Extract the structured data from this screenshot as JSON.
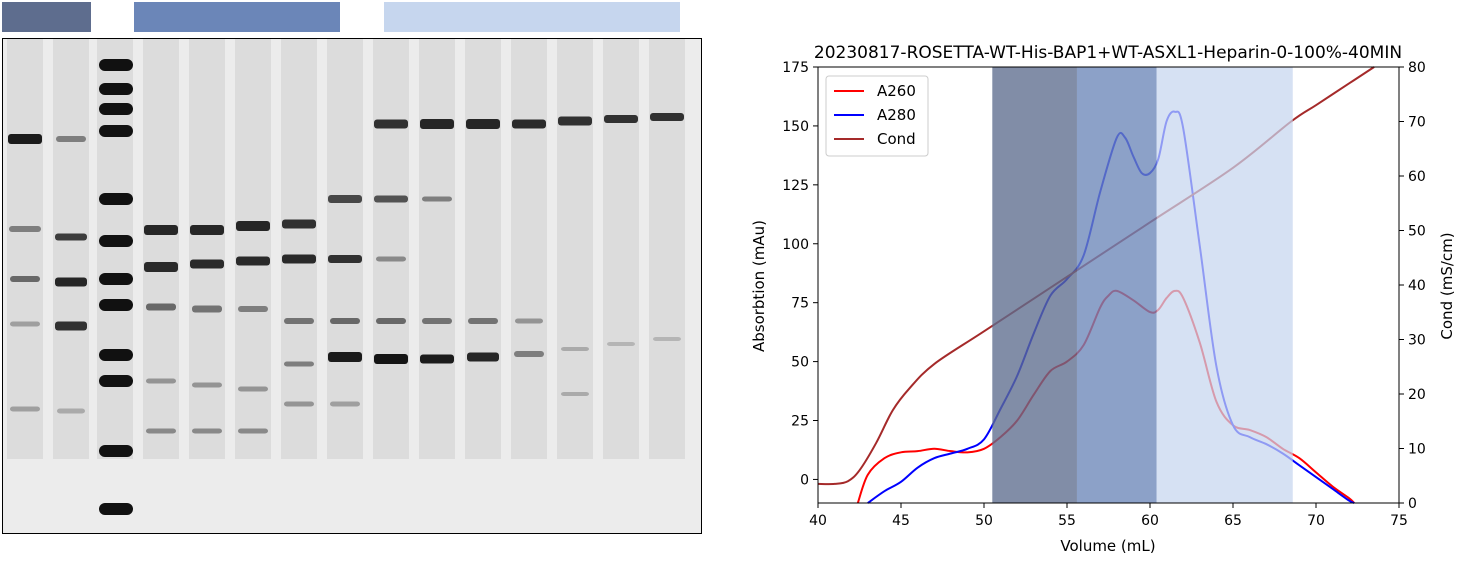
{
  "fraction_bars": [
    {
      "color": "#5e6d8e"
    },
    {
      "color": "#6b86b8"
    },
    {
      "color": "#c6d6ee"
    }
  ],
  "gel": {
    "background": "#ececec",
    "band_color": "#111111",
    "lanes": 15
  },
  "chart_data": {
    "type": "line",
    "title": "20230817-ROSETTA-WT-His-BAP1+WT-ASXL1-Heparin-0-100%-40MIN",
    "xlabel": "Volume (mL)",
    "ylabel": "Absorbtion (mAu)",
    "y2label": "Cond (mS/cm)",
    "xlim": [
      40,
      75
    ],
    "ylim": [
      -10,
      175
    ],
    "y2lim": [
      0,
      80
    ],
    "xticks": [
      40,
      45,
      50,
      55,
      60,
      65,
      70,
      75
    ],
    "yticks": [
      0,
      25,
      50,
      75,
      100,
      125,
      150,
      175
    ],
    "y2ticks": [
      0,
      10,
      20,
      30,
      40,
      50,
      60,
      70,
      80
    ],
    "legend_position": "top-left",
    "grid": false,
    "fraction_regions": [
      {
        "x": [
          50.5,
          55.6
        ],
        "color": "#5e6d8e"
      },
      {
        "x": [
          55.6,
          60.4
        ],
        "color": "#6b86b8"
      },
      {
        "x": [
          60.4,
          68.6
        ],
        "color": "#c6d6ee"
      }
    ],
    "series": [
      {
        "name": "A260",
        "axis": "left",
        "color": "#ff0000",
        "points": [
          [
            42.4,
            -10
          ],
          [
            43,
            2
          ],
          [
            44,
            9
          ],
          [
            45,
            11.5
          ],
          [
            46,
            12
          ],
          [
            47,
            13
          ],
          [
            48,
            12
          ],
          [
            49,
            11.5
          ],
          [
            50,
            13
          ],
          [
            51,
            18
          ],
          [
            52,
            25
          ],
          [
            53,
            36
          ],
          [
            54,
            46
          ],
          [
            55,
            50
          ],
          [
            56,
            57
          ],
          [
            57,
            73
          ],
          [
            57.5,
            78
          ],
          [
            58,
            80
          ],
          [
            59,
            76
          ],
          [
            60,
            71
          ],
          [
            60.5,
            72
          ],
          [
            61,
            77
          ],
          [
            61.5,
            80
          ],
          [
            62,
            77
          ],
          [
            63,
            58
          ],
          [
            64,
            33
          ],
          [
            65,
            23
          ],
          [
            66,
            21
          ],
          [
            67,
            18
          ],
          [
            68,
            13
          ],
          [
            69,
            9
          ],
          [
            70,
            3
          ],
          [
            71,
            -3
          ],
          [
            72,
            -8
          ],
          [
            72.3,
            -10
          ]
        ]
      },
      {
        "name": "A280",
        "axis": "left",
        "color": "#0000ff",
        "points": [
          [
            43,
            -10
          ],
          [
            44,
            -5
          ],
          [
            45,
            -1
          ],
          [
            46,
            5
          ],
          [
            47,
            9
          ],
          [
            48,
            11
          ],
          [
            49,
            13
          ],
          [
            50,
            17
          ],
          [
            51,
            30
          ],
          [
            52,
            44
          ],
          [
            53,
            62
          ],
          [
            54,
            78
          ],
          [
            55,
            85
          ],
          [
            56,
            95
          ],
          [
            57,
            122
          ],
          [
            58,
            145
          ],
          [
            58.5,
            145
          ],
          [
            59,
            137
          ],
          [
            59.5,
            130
          ],
          [
            60,
            130
          ],
          [
            60.5,
            136
          ],
          [
            61,
            152
          ],
          [
            61.5,
            156
          ],
          [
            62,
            149
          ],
          [
            63,
            99
          ],
          [
            64,
            48
          ],
          [
            65,
            23
          ],
          [
            66,
            18
          ],
          [
            67,
            15
          ],
          [
            68,
            11
          ],
          [
            69,
            6
          ],
          [
            70,
            1
          ],
          [
            71,
            -4
          ],
          [
            72,
            -9
          ],
          [
            72.3,
            -10
          ]
        ]
      },
      {
        "name": "Cond",
        "axis": "right",
        "color": "#a52a2a",
        "points": [
          [
            40,
            3.5
          ],
          [
            41,
            3.5
          ],
          [
            41.8,
            4
          ],
          [
            42.5,
            6
          ],
          [
            43.5,
            11
          ],
          [
            44.5,
            17
          ],
          [
            45.5,
            21
          ],
          [
            47,
            25.5
          ],
          [
            50,
            31.5
          ],
          [
            55,
            41.5
          ],
          [
            60,
            51.5
          ],
          [
            65,
            61.5
          ],
          [
            68.5,
            70
          ],
          [
            70,
            73
          ],
          [
            72,
            77
          ],
          [
            73.5,
            80
          ]
        ]
      }
    ]
  }
}
